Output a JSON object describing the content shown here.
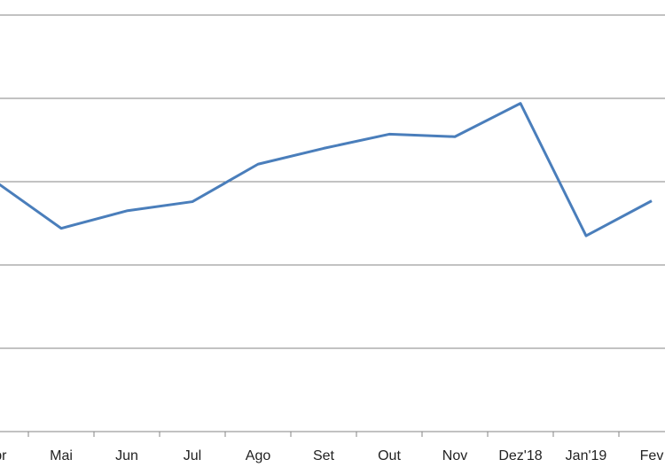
{
  "chart_data": {
    "type": "line",
    "categories": [
      "Abr",
      "Mai",
      "Jun",
      "Jul",
      "Ago",
      "Set",
      "Out",
      "Nov",
      "Dez'18",
      "Jan'19",
      "Fev"
    ],
    "series": [
      {
        "color": "#4a7ebb",
        "values": [
          3.0,
          2.44,
          2.65,
          2.76,
          3.21,
          3.4,
          3.57,
          3.54,
          3.94,
          2.35,
          2.77
        ]
      }
    ],
    "ylim": [
      0,
      5
    ],
    "yticks": [
      0,
      1,
      2,
      3,
      4,
      5
    ],
    "grid": true
  }
}
